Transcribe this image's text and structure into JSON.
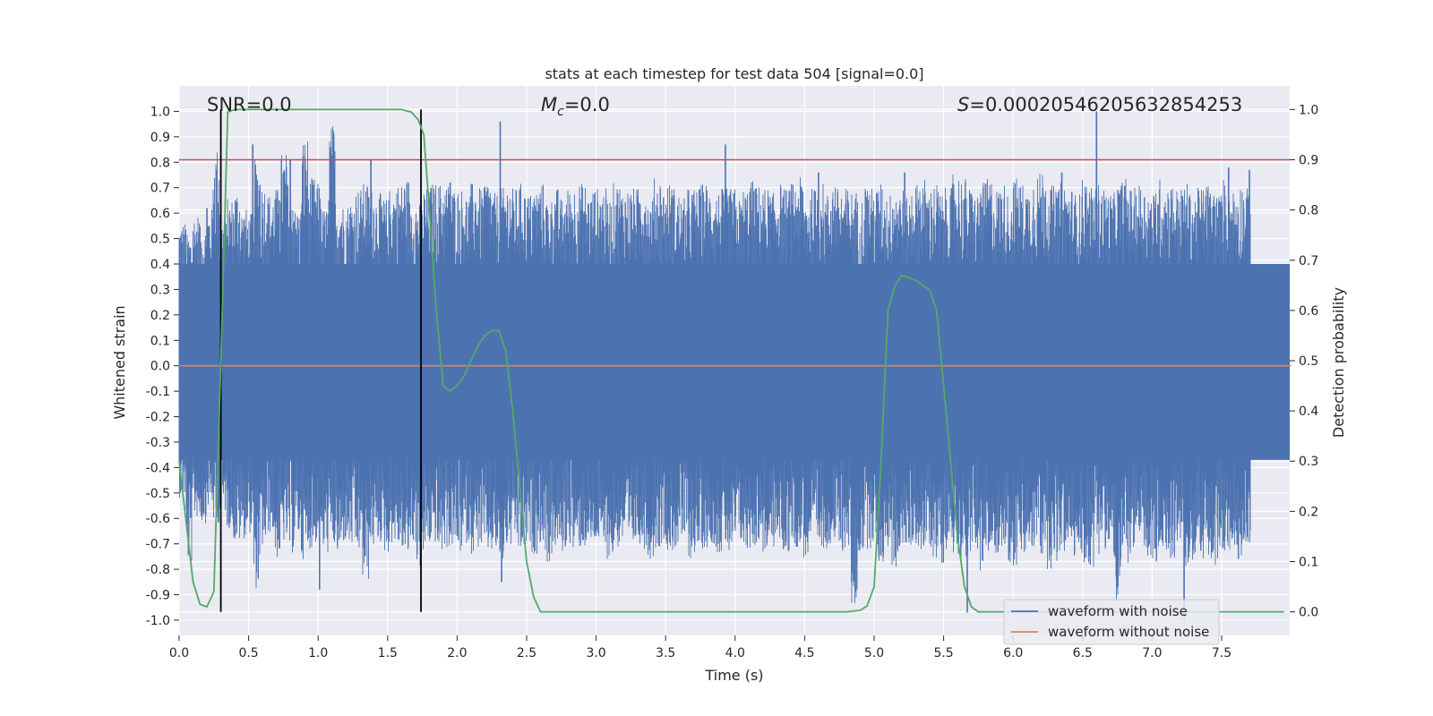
{
  "chart_data": {
    "type": "line",
    "title": "stats at each timestep for test data 504 [signal=0.0]",
    "xlabel": "Time (s)",
    "ylabel_left": "Whitened strain",
    "ylabel_right": "Detection probability",
    "xlim": [
      0.0,
      8.0
    ],
    "ylim_left": [
      -1.06,
      1.1
    ],
    "ylim_right": [
      -0.047,
      1.047
    ],
    "x_ticks": [
      "0.0",
      "0.5",
      "1.0",
      "1.5",
      "2.0",
      "2.5",
      "3.0",
      "3.5",
      "4.0",
      "4.5",
      "5.0",
      "5.5",
      "6.0",
      "6.5",
      "7.0",
      "7.5"
    ],
    "y_ticks_left": [
      "-1.0",
      "-0.9",
      "-0.8",
      "-0.7",
      "-0.6",
      "-0.5",
      "-0.4",
      "-0.3",
      "-0.2",
      "-0.1",
      "0.0",
      "0.1",
      "0.2",
      "0.3",
      "0.4",
      "0.5",
      "0.6",
      "0.7",
      "0.8",
      "0.9",
      "1.0"
    ],
    "y_ticks_right": [
      "0.0",
      "0.1",
      "0.2",
      "0.3",
      "0.4",
      "0.5",
      "0.6",
      "0.7",
      "0.8",
      "0.9",
      "1.0"
    ],
    "grid": true,
    "legend_placement": "lower-right",
    "annotations": {
      "snr_label": "SNR=0.0",
      "mc_symbol": "M",
      "mc_sub": "c",
      "mc_value": "=0.0",
      "s_symbol": "S",
      "s_value": "=0.00020546205632854253"
    },
    "threshold": {
      "value_right_axis": 0.9,
      "color": "#c44e52"
    },
    "vertical_markers_x": [
      0.3,
      1.74
    ],
    "series": [
      {
        "name": "waveform with noise",
        "axis": "left",
        "color": "#4c72b0",
        "envelope_upper": [
          0.57,
          0.52,
          0.6,
          0.55,
          0.62,
          0.86,
          0.58,
          0.66,
          0.7,
          0.62,
          0.6,
          0.81,
          0.72,
          0.68,
          0.7,
          0.84,
          0.72,
          0.62,
          0.9,
          0.74,
          0.72,
          0.62,
          0.95,
          0.66,
          0.64,
          0.66,
          0.7,
          0.72,
          0.7,
          0.68,
          0.66,
          0.7,
          0.72,
          0.74,
          0.66,
          0.64,
          0.7,
          0.72,
          0.72,
          0.72,
          0.7,
          0.7,
          0.68,
          0.72,
          0.7,
          0.74,
          0.68,
          0.7,
          0.72,
          0.7,
          0.72,
          0.68,
          0.7,
          0.72,
          0.66,
          0.7,
          0.66,
          0.7,
          0.71,
          0.72,
          0.68,
          0.7,
          0.7,
          0.66,
          0.72,
          0.7,
          0.7,
          0.7,
          0.73,
          0.66,
          0.74,
          0.7,
          0.72,
          0.68,
          0.66,
          0.7,
          0.7,
          0.72,
          0.7,
          0.69,
          0.7,
          0.7,
          0.66,
          0.7,
          0.73,
          0.71,
          0.7,
          0.68,
          0.72,
          0.7,
          0.72,
          0.74,
          0.68,
          0.7,
          0.72,
          0.68,
          0.74,
          0.7,
          0.7,
          0.69,
          0.66,
          0.72,
          0.7,
          0.72,
          0.68,
          0.72,
          0.7,
          0.66,
          0.72,
          0.74,
          0.7,
          0.72,
          0.68,
          0.7,
          0.76,
          0.74,
          0.7,
          0.68,
          0.72,
          0.74,
          0.7,
          0.72,
          0.68,
          0.74,
          0.72,
          0.7,
          0.76,
          0.78,
          0.71,
          0.7,
          0.72,
          0.7,
          0.68,
          0.74,
          0.7,
          0.72,
          0.7,
          0.68,
          0.72,
          0.74,
          0.7,
          0.72,
          0.7,
          0.68,
          0.74,
          0.72,
          0.72,
          0.7,
          0.72,
          0.68,
          0.7,
          0.72,
          0.7,
          0.68,
          0.74,
          0.7,
          0.72,
          0.7,
          0.74,
          0.68,
          0.72,
          0.7,
          0.7,
          0.68
        ],
        "envelope_lower": [
          -0.52,
          -0.78,
          -0.6,
          -0.62,
          -0.56,
          -0.62,
          -0.58,
          -0.64,
          -0.7,
          -0.68,
          -0.66,
          -0.88,
          -0.72,
          -0.66,
          -0.76,
          -0.7,
          -0.74,
          -0.68,
          -0.76,
          -0.72,
          -0.7,
          -0.74,
          -0.72,
          -0.76,
          -0.7,
          -0.72,
          -0.74,
          -0.85,
          -0.72,
          -0.7,
          -0.74,
          -0.7,
          -0.72,
          -0.76,
          -0.7,
          -0.8,
          -0.72,
          -0.7,
          -0.74,
          -0.72,
          -0.72,
          -0.74,
          -0.7,
          -0.74,
          -0.72,
          -0.74,
          -0.74,
          -0.78,
          -0.72,
          -0.7,
          -0.74,
          -0.72,
          -0.74,
          -0.7,
          -0.78,
          -0.72,
          -0.74,
          -0.7,
          -0.74,
          -0.72,
          -0.72,
          -0.7,
          -0.74,
          -0.76,
          -0.72,
          -0.7,
          -0.74,
          -0.7,
          -0.72,
          -0.76,
          -0.72,
          -0.7,
          -0.74,
          -0.72,
          -0.7,
          -0.76,
          -0.74,
          -0.72,
          -0.7,
          -0.74,
          -0.72,
          -0.76,
          -0.7,
          -0.74,
          -0.72,
          -0.7,
          -0.74,
          -0.72,
          -0.7,
          -0.74,
          -0.7,
          -0.72,
          -0.76,
          -0.7,
          -0.74,
          -0.72,
          -0.7,
          -0.74,
          -0.72,
          -0.96,
          -0.74,
          -0.72,
          -0.7,
          -0.78,
          -0.72,
          -0.8,
          -0.74,
          -0.72,
          -0.7,
          -0.74,
          -0.72,
          -0.76,
          -0.78,
          -0.72,
          -0.74,
          -0.78,
          -0.76,
          -0.72,
          -0.82,
          -0.76,
          -0.74,
          -0.72,
          -0.78,
          -0.8,
          -0.76,
          -0.74,
          -0.72,
          -0.76,
          -0.8,
          -0.78,
          -0.74,
          -0.72,
          -0.76,
          -0.78,
          -0.8,
          -0.74,
          -0.72,
          -0.76,
          -0.96,
          -0.78,
          -0.74,
          -0.72,
          -0.76,
          -0.78,
          -0.8,
          -0.74,
          -0.76,
          -0.72,
          -0.8,
          -0.78,
          -0.74,
          -0.76,
          -0.82,
          -0.78,
          -0.74,
          -0.72,
          -0.76,
          -0.7
        ],
        "spikes": [
          {
            "x": 0.2,
            "y": 0.62
          },
          {
            "x": 0.53,
            "y": 0.87
          },
          {
            "x": 0.72,
            "y": 0.65
          },
          {
            "x": 0.8,
            "y": 0.81
          },
          {
            "x": 1.01,
            "y": -0.88
          },
          {
            "x": 1.38,
            "y": 0.81
          },
          {
            "x": 1.81,
            "y": 0.68
          },
          {
            "x": 1.95,
            "y": 0.72
          },
          {
            "x": 2.31,
            "y": 0.96
          },
          {
            "x": 2.32,
            "y": -0.85
          },
          {
            "x": 3.93,
            "y": 0.87
          },
          {
            "x": 4.6,
            "y": 0.76
          },
          {
            "x": 5.22,
            "y": 0.76
          },
          {
            "x": 6.35,
            "y": 0.76
          },
          {
            "x": 6.6,
            "y": 1.0
          },
          {
            "x": 7.23,
            "y": -1.0
          },
          {
            "x": 7.55,
            "y": 0.78
          },
          {
            "x": 7.7,
            "y": 0.77
          },
          {
            "x": 5.67,
            "y": -0.97
          }
        ]
      },
      {
        "name": "waveform without noise",
        "axis": "left",
        "color": "#dd8452",
        "x": [
          0.0,
          8.0
        ],
        "y": [
          0.0,
          0.0
        ]
      },
      {
        "name": "detection probability",
        "axis": "right",
        "color": "#55a868",
        "x": [
          0.0,
          0.05,
          0.1,
          0.15,
          0.2,
          0.25,
          0.3,
          0.35,
          0.4,
          0.45,
          0.5,
          0.6,
          0.8,
          1.0,
          1.2,
          1.4,
          1.6,
          1.67,
          1.72,
          1.76,
          1.8,
          1.85,
          1.9,
          1.95,
          2.0,
          2.05,
          2.1,
          2.15,
          2.2,
          2.25,
          2.3,
          2.35,
          2.4,
          2.45,
          2.5,
          2.55,
          2.6,
          3.0,
          3.5,
          4.0,
          4.5,
          4.8,
          4.9,
          4.95,
          5.0,
          5.05,
          5.1,
          5.15,
          5.2,
          5.3,
          5.35,
          5.4,
          5.45,
          5.5,
          5.55,
          5.6,
          5.65,
          5.7,
          5.75,
          5.8,
          6.5,
          7.0,
          7.5,
          7.95
        ],
        "y": [
          0.3,
          0.18,
          0.06,
          0.015,
          0.01,
          0.04,
          0.5,
          0.995,
          1.0,
          1.0,
          1.0,
          1.0,
          1.0,
          1.0,
          1.0,
          1.0,
          1.0,
          0.995,
          0.98,
          0.95,
          0.8,
          0.6,
          0.45,
          0.44,
          0.45,
          0.47,
          0.5,
          0.53,
          0.55,
          0.56,
          0.56,
          0.52,
          0.4,
          0.25,
          0.1,
          0.03,
          0.0,
          0.0,
          0.0,
          0.0,
          0.0,
          0.0,
          0.003,
          0.012,
          0.05,
          0.3,
          0.6,
          0.65,
          0.67,
          0.66,
          0.65,
          0.64,
          0.6,
          0.45,
          0.3,
          0.15,
          0.05,
          0.01,
          0.0,
          0.0,
          0.0,
          0.0,
          0.0,
          0.0
        ]
      }
    ]
  }
}
